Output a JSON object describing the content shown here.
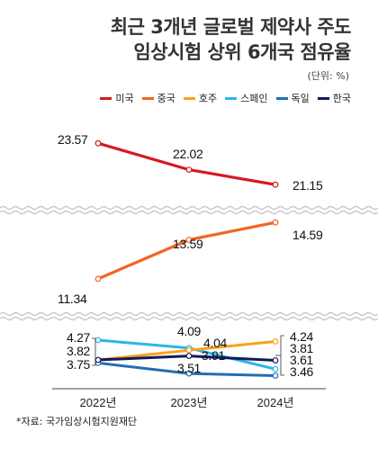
{
  "title_line1": "최근 3개년 글로벌 제약사 주도",
  "title_line2": "임상시험 상위 6개국 점유율",
  "unit": "(단위: %)",
  "source": "*자료: 국가임상시험지원재단",
  "chart_data": {
    "type": "line",
    "categories": [
      "2022년",
      "2023년",
      "2024년"
    ],
    "axis_break": true,
    "grid": false,
    "legend_position": "top-right",
    "series": [
      {
        "name": "미국",
        "color": "#d71920",
        "values": [
          23.57,
          22.02,
          21.15
        ],
        "labels": [
          "23.57",
          "22.02",
          "21.15"
        ]
      },
      {
        "name": "중국",
        "color": "#f26522",
        "values": [
          11.34,
          13.59,
          14.59
        ],
        "labels": [
          "11.34",
          "13.59",
          "14.59"
        ]
      },
      {
        "name": "호주",
        "color": "#f7a21b",
        "values": [
          3.82,
          4.04,
          4.24
        ],
        "labels": [
          "3.82",
          "4.04",
          "4.24"
        ]
      },
      {
        "name": "스페인",
        "color": "#2bb5e8",
        "values": [
          4.27,
          4.09,
          3.61
        ],
        "labels": [
          "4.27",
          "4.09",
          "3.61"
        ]
      },
      {
        "name": "독일",
        "color": "#1f6fb2",
        "values": [
          3.75,
          3.51,
          3.46
        ],
        "labels": [
          "3.75",
          "3.51",
          "3.46"
        ]
      },
      {
        "name": "한국",
        "color": "#101a5c",
        "values": [
          3.82,
          3.91,
          3.81
        ],
        "labels": [
          "3.82",
          "3.91",
          "3.81"
        ]
      }
    ]
  }
}
